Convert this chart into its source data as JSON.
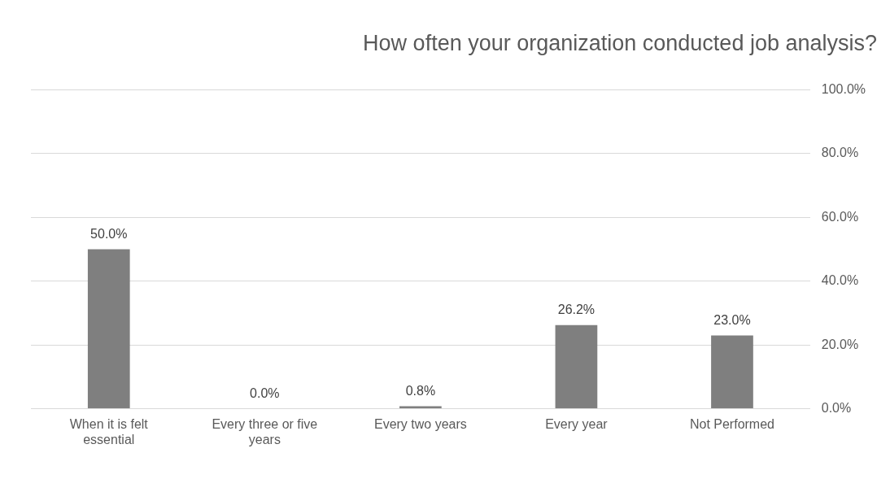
{
  "chart_data": {
    "type": "bar",
    "title": "How often your organization conducted job analysis?",
    "categories": [
      "When it is felt essential",
      "Every three or five years",
      "Every two years",
      "Every year",
      "Not Performed"
    ],
    "values": [
      50.0,
      0.0,
      0.8,
      26.2,
      23.0
    ],
    "value_labels": [
      "50.0%",
      "0.0%",
      "0.8%",
      "26.2%",
      "23.0%"
    ],
    "color": "#7f7f7f",
    "ylim": [
      0,
      100
    ],
    "yticks": [
      {
        "value": 0,
        "label": "0.0%"
      },
      {
        "value": 20,
        "label": "20.0%"
      },
      {
        "value": 40,
        "label": "40.0%"
      },
      {
        "value": 60,
        "label": "60.0%"
      },
      {
        "value": 80,
        "label": "80.0%"
      },
      {
        "value": 100,
        "label": "100.0%"
      }
    ],
    "grid": "y",
    "legend": false
  }
}
